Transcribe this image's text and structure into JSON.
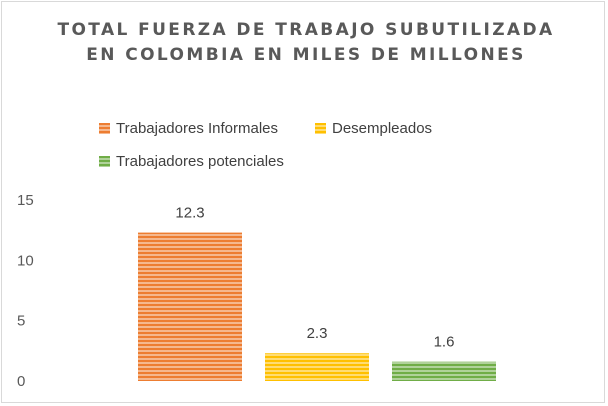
{
  "chart_data": {
    "type": "bar",
    "title": "TOTAL FUERZA DE TRABAJO SUBUTILIZADA EN COLOMBIA EN MILES DE MILLONES",
    "categories": [
      "Trabajadores Informales",
      "Desempleados",
      "Trabajadores potenciales"
    ],
    "values": [
      12.3,
      2.3,
      1.6
    ],
    "data_labels": [
      "12.3",
      "2.3",
      "1.6"
    ],
    "colors": [
      "#ED7D31",
      "#FFC000",
      "#70AD47"
    ],
    "ylim": [
      0,
      15
    ],
    "yticks": [
      "0",
      "5",
      "10",
      "15"
    ],
    "xlabel": "",
    "ylabel": "",
    "grid": false,
    "legend_position": "top",
    "bar_pattern": "horizontal-stripes"
  }
}
